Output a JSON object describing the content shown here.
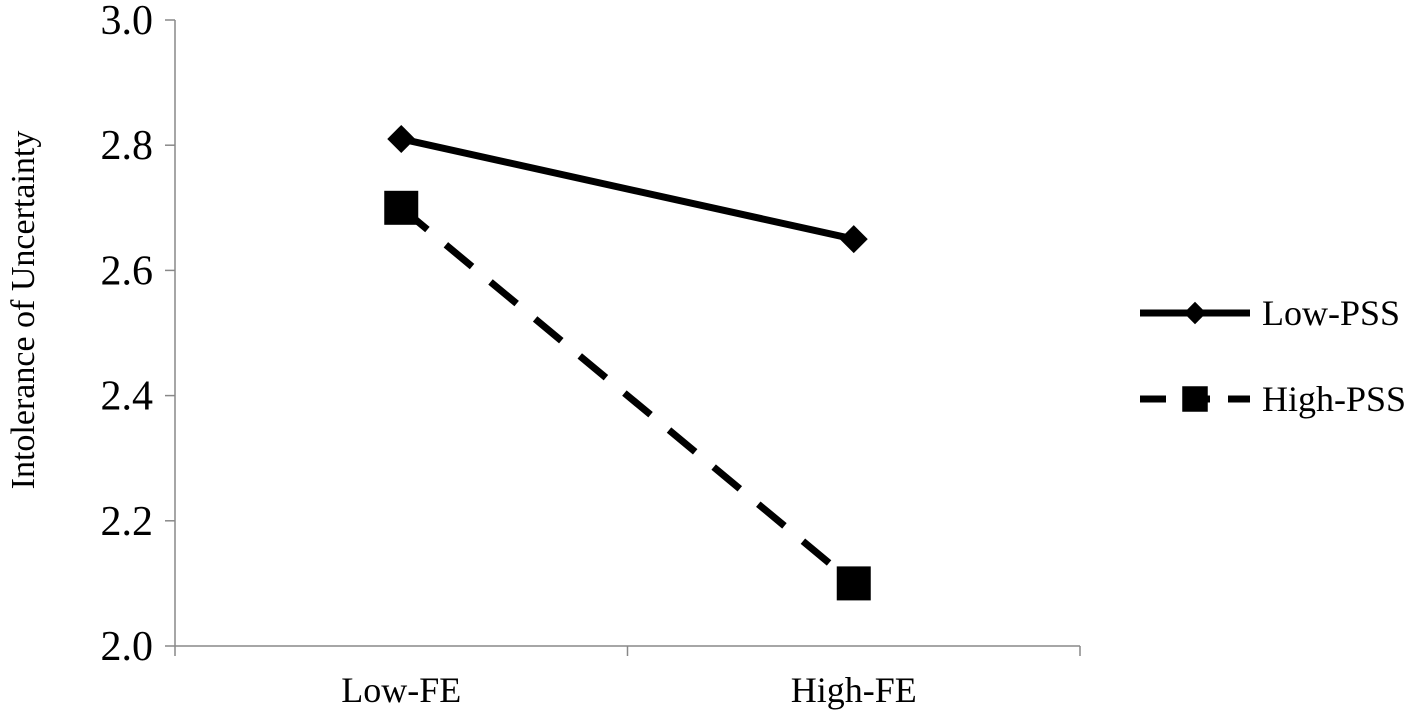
{
  "chart_data": {
    "type": "line",
    "categories": [
      "Low-FE",
      "High-FE"
    ],
    "series": [
      {
        "name": "Low-PSS",
        "values": [
          2.81,
          2.65
        ],
        "line_style": "solid",
        "marker": "diamond",
        "color": "#000000"
      },
      {
        "name": "High-PSS",
        "values": [
          2.7,
          2.1
        ],
        "line_style": "dashed",
        "marker": "square",
        "color": "#000000"
      }
    ],
    "title": "",
    "xlabel": "",
    "ylabel": "Intolerance of Uncertainty",
    "ylim": [
      2.0,
      3.0
    ],
    "yticks": [
      "2.0",
      "2.2",
      "2.4",
      "2.6",
      "2.8",
      "3.0"
    ],
    "grid": false,
    "legend_position": "right"
  }
}
